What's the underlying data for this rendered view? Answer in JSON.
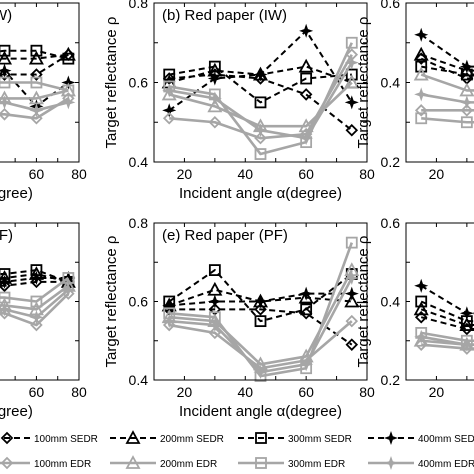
{
  "colors": {
    "sedr": "#000000",
    "edr": "#a6a6a6",
    "axis": "#000000",
    "background": "#ffffff"
  },
  "legend": {
    "placement": "bottom",
    "entries": [
      {
        "label": "100mm SEDR",
        "style": "dashed",
        "color": "#000000",
        "marker": "diamond"
      },
      {
        "label": "200mm SEDR",
        "style": "dashed",
        "color": "#000000",
        "marker": "triangle"
      },
      {
        "label": "300mm SEDR",
        "style": "dashed",
        "color": "#000000",
        "marker": "square"
      },
      {
        "label": "400mm SEDR",
        "style": "dashed",
        "color": "#000000",
        "marker": "star"
      },
      {
        "label": "100mm EDR",
        "style": "solid",
        "color": "#a6a6a6",
        "marker": "diamond"
      },
      {
        "label": "200mm EDR",
        "style": "solid",
        "color": "#a6a6a6",
        "marker": "triangle"
      },
      {
        "label": "300mm EDR",
        "style": "solid",
        "color": "#a6a6a6",
        "marker": "square"
      },
      {
        "label": "400mm EDR",
        "style": "solid",
        "color": "#a6a6a6",
        "marker": "star"
      }
    ]
  },
  "chart_data": [
    {
      "type": "line",
      "title": "ncrete (IW)",
      "xlabel": "(degree)",
      "ylabel": "",
      "xlim": [
        10,
        80
      ],
      "ylim": [
        0.4,
        0.8
      ],
      "xticks": [
        "60",
        "80"
      ],
      "yticks": [],
      "grid": false,
      "x": [
        15,
        30,
        45,
        60,
        75
      ],
      "series": [
        {
          "name": "100mm SEDR",
          "values": [
            0.62,
            0.62,
            0.62,
            0.62,
            0.67
          ]
        },
        {
          "name": "200mm SEDR",
          "values": [
            0.66,
            0.66,
            0.66,
            0.66,
            0.67
          ]
        },
        {
          "name": "300mm SEDR",
          "values": [
            0.67,
            0.67,
            0.68,
            0.68,
            0.66
          ]
        },
        {
          "name": "400mm SEDR",
          "values": [
            0.63,
            0.63,
            0.63,
            0.54,
            0.6
          ]
        },
        {
          "name": "100mm EDR",
          "values": [
            0.52,
            0.52,
            0.52,
            0.51,
            0.56
          ]
        },
        {
          "name": "200mm EDR",
          "values": [
            0.56,
            0.56,
            0.56,
            0.56,
            0.58
          ]
        },
        {
          "name": "300mm EDR",
          "values": [
            0.6,
            0.6,
            0.6,
            0.6,
            0.58
          ]
        },
        {
          "name": "400mm EDR",
          "values": [
            0.55,
            0.55,
            0.55,
            0.53,
            0.55
          ]
        }
      ]
    },
    {
      "type": "line",
      "title": "(b) Red paper (IW)",
      "xlabel": "Incident angle α(degree)",
      "ylabel": "Target reflectance ρ",
      "xlim": [
        10,
        80
      ],
      "ylim": [
        0.4,
        0.8
      ],
      "xticks": [
        "20",
        "40",
        "60",
        "80"
      ],
      "yticks": [
        "0.4",
        "0.6",
        "0.8"
      ],
      "grid": false,
      "x": [
        15,
        30,
        45,
        60,
        75
      ],
      "series": [
        {
          "name": "100mm SEDR",
          "values": [
            0.61,
            0.62,
            0.61,
            0.57,
            0.48
          ]
        },
        {
          "name": "200mm SEDR",
          "values": [
            0.6,
            0.63,
            0.62,
            0.64,
            0.6
          ]
        },
        {
          "name": "300mm SEDR",
          "values": [
            0.62,
            0.64,
            0.55,
            0.61,
            0.62
          ]
        },
        {
          "name": "400mm SEDR",
          "values": [
            0.53,
            0.61,
            0.62,
            0.73,
            0.55
          ]
        },
        {
          "name": "100mm EDR",
          "values": [
            0.51,
            0.5,
            0.46,
            0.47,
            0.67
          ]
        },
        {
          "name": "200mm EDR",
          "values": [
            0.57,
            0.54,
            0.49,
            0.49,
            0.6
          ]
        },
        {
          "name": "300mm EDR",
          "values": [
            0.59,
            0.57,
            0.42,
            0.45,
            0.7
          ]
        },
        {
          "name": "400mm EDR",
          "values": [
            0.58,
            0.56,
            0.48,
            0.46,
            0.65
          ]
        }
      ]
    },
    {
      "type": "line",
      "title": "",
      "xlabel": "Inc",
      "ylabel": "Target reflectance ρ",
      "xlim": [
        10,
        80
      ],
      "ylim": [
        0.2,
        0.6
      ],
      "xticks": [
        "20"
      ],
      "yticks": [
        "0.2",
        "0.4",
        "0.6"
      ],
      "grid": false,
      "x": [
        15,
        30,
        45,
        60,
        75
      ],
      "series": [
        {
          "name": "100mm SEDR",
          "values": [
            0.46,
            0.41,
            0.41,
            0.41,
            0.41
          ]
        },
        {
          "name": "200mm SEDR",
          "values": [
            0.47,
            0.43,
            0.43,
            0.43,
            0.43
          ]
        },
        {
          "name": "300mm SEDR",
          "values": [
            0.44,
            0.42,
            0.42,
            0.42,
            0.42
          ]
        },
        {
          "name": "400mm SEDR",
          "values": [
            0.52,
            0.44,
            0.44,
            0.44,
            0.44
          ]
        },
        {
          "name": "100mm EDR",
          "values": [
            0.33,
            0.33,
            0.33,
            0.33,
            0.33
          ]
        },
        {
          "name": "200mm EDR",
          "values": [
            0.42,
            0.38,
            0.38,
            0.38,
            0.38
          ]
        },
        {
          "name": "300mm EDR",
          "values": [
            0.31,
            0.3,
            0.3,
            0.3,
            0.3
          ]
        },
        {
          "name": "400mm EDR",
          "values": [
            0.37,
            0.35,
            0.35,
            0.35,
            0.35
          ]
        }
      ]
    },
    {
      "type": "line",
      "title": "ncrete (PF)",
      "xlabel": "(degree)",
      "ylabel": "",
      "xlim": [
        10,
        80
      ],
      "ylim": [
        0.4,
        0.8
      ],
      "xticks": [
        "60",
        "80"
      ],
      "yticks": [],
      "grid": false,
      "x": [
        15,
        30,
        45,
        60,
        75
      ],
      "series": [
        {
          "name": "100mm SEDR",
          "values": [
            0.64,
            0.64,
            0.64,
            0.65,
            0.65
          ]
        },
        {
          "name": "200mm SEDR",
          "values": [
            0.66,
            0.66,
            0.66,
            0.67,
            0.65
          ]
        },
        {
          "name": "300mm SEDR",
          "values": [
            0.67,
            0.67,
            0.67,
            0.68,
            0.65
          ]
        },
        {
          "name": "400mm SEDR",
          "values": [
            0.65,
            0.65,
            0.65,
            0.66,
            0.66
          ]
        },
        {
          "name": "100mm EDR",
          "values": [
            0.57,
            0.57,
            0.57,
            0.54,
            0.62
          ]
        },
        {
          "name": "200mm EDR",
          "values": [
            0.59,
            0.59,
            0.59,
            0.58,
            0.64
          ]
        },
        {
          "name": "300mm EDR",
          "values": [
            0.61,
            0.61,
            0.61,
            0.6,
            0.66
          ]
        },
        {
          "name": "400mm EDR",
          "values": [
            0.58,
            0.58,
            0.58,
            0.56,
            0.63
          ]
        }
      ]
    },
    {
      "type": "line",
      "title": "(e) Red paper (PF)",
      "xlabel": "Incident angle α(degree)",
      "ylabel": "Target reflectance ρ",
      "xlim": [
        10,
        80
      ],
      "ylim": [
        0.4,
        0.8
      ],
      "xticks": [
        "20",
        "40",
        "60",
        "80"
      ],
      "yticks": [
        "0.4",
        "0.6",
        "0.8"
      ],
      "grid": false,
      "x": [
        15,
        30,
        45,
        60,
        75
      ],
      "series": [
        {
          "name": "100mm SEDR",
          "values": [
            0.58,
            0.58,
            0.58,
            0.57,
            0.49
          ]
        },
        {
          "name": "200mm SEDR",
          "values": [
            0.59,
            0.63,
            0.6,
            0.61,
            0.6
          ]
        },
        {
          "name": "300mm SEDR",
          "values": [
            0.6,
            0.68,
            0.55,
            0.58,
            0.67
          ]
        },
        {
          "name": "400mm SEDR",
          "values": [
            0.59,
            0.6,
            0.6,
            0.62,
            0.62
          ]
        },
        {
          "name": "100mm EDR",
          "values": [
            0.54,
            0.52,
            0.43,
            0.45,
            0.55
          ]
        },
        {
          "name": "200mm EDR",
          "values": [
            0.56,
            0.55,
            0.44,
            0.46,
            0.68
          ]
        },
        {
          "name": "300mm EDR",
          "values": [
            0.57,
            0.56,
            0.41,
            0.43,
            0.75
          ]
        },
        {
          "name": "400mm EDR",
          "values": [
            0.55,
            0.54,
            0.42,
            0.44,
            0.66
          ]
        }
      ]
    },
    {
      "type": "line",
      "title": "",
      "xlabel": "Inc",
      "ylabel": "Target reflectance ρ",
      "xlim": [
        10,
        80
      ],
      "ylim": [
        0.2,
        0.6
      ],
      "xticks": [
        "20"
      ],
      "yticks": [
        "0.2",
        "0.4",
        "0.6"
      ],
      "grid": false,
      "x": [
        15,
        30,
        45,
        60,
        75
      ],
      "series": [
        {
          "name": "100mm SEDR",
          "values": [
            0.36,
            0.33,
            0.33,
            0.33,
            0.33
          ]
        },
        {
          "name": "200mm SEDR",
          "values": [
            0.38,
            0.34,
            0.34,
            0.34,
            0.34
          ]
        },
        {
          "name": "300mm SEDR",
          "values": [
            0.4,
            0.35,
            0.35,
            0.35,
            0.35
          ]
        },
        {
          "name": "400mm SEDR",
          "values": [
            0.44,
            0.37,
            0.37,
            0.37,
            0.37
          ]
        },
        {
          "name": "100mm EDR",
          "values": [
            0.29,
            0.28,
            0.28,
            0.28,
            0.28
          ]
        },
        {
          "name": "200mm EDR",
          "values": [
            0.3,
            0.29,
            0.29,
            0.29,
            0.29
          ]
        },
        {
          "name": "300mm EDR",
          "values": [
            0.32,
            0.3,
            0.3,
            0.3,
            0.3
          ]
        },
        {
          "name": "400mm EDR",
          "values": [
            0.31,
            0.29,
            0.29,
            0.29,
            0.29
          ]
        }
      ]
    }
  ]
}
